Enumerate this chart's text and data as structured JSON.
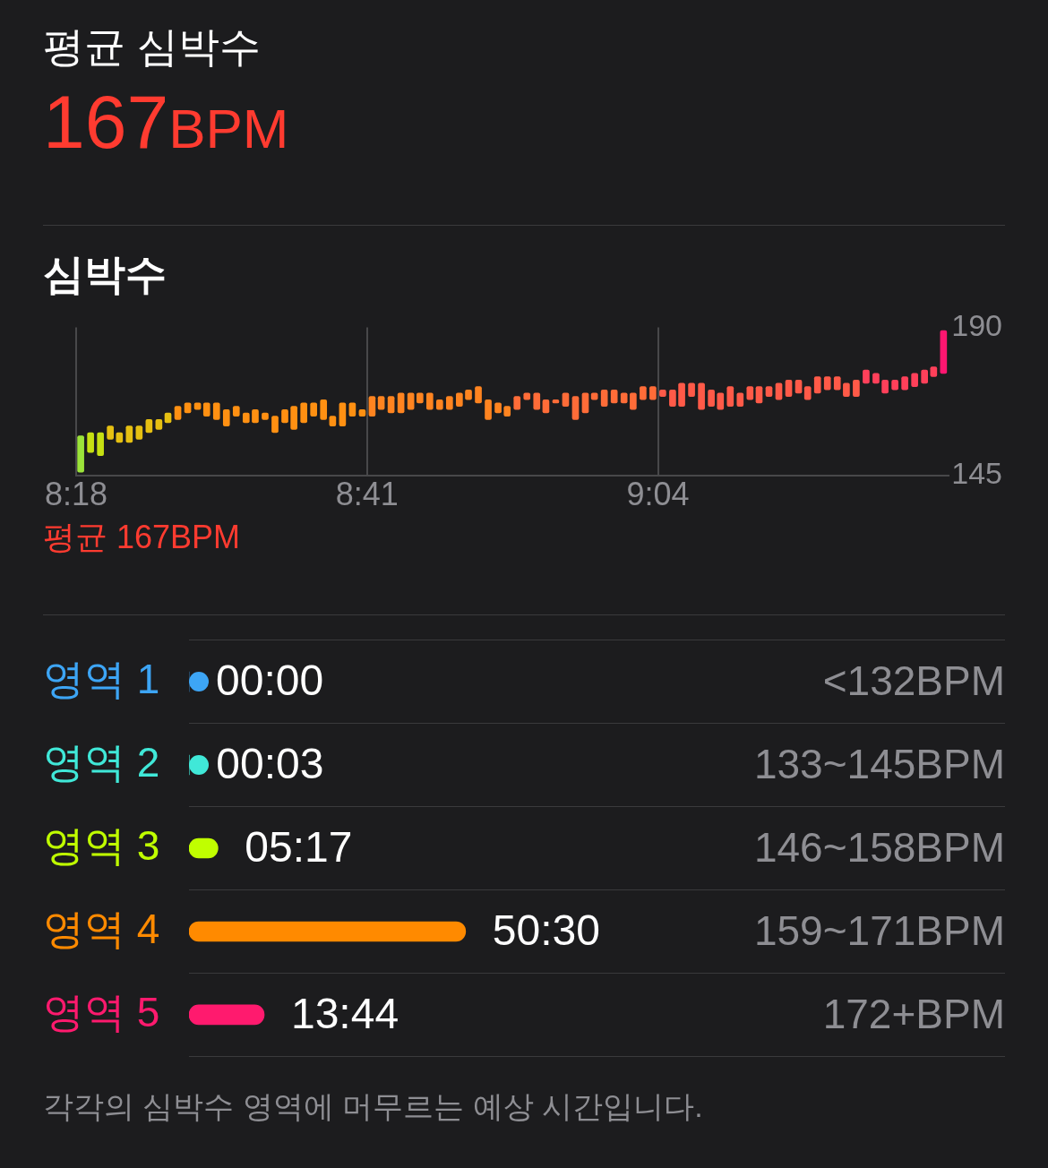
{
  "chart_data": [
    {
      "type": "other",
      "title": "평균 심박수",
      "subtitle": "167BPM"
    },
    {
      "type": "bar",
      "title": "심박수",
      "x": [
        8.306,
        8.319,
        8.332,
        8.345,
        8.357,
        8.37,
        8.383,
        8.396,
        8.409,
        8.421,
        8.434,
        8.447,
        8.46,
        8.472,
        8.485,
        8.498,
        8.511,
        8.524,
        8.536,
        8.549,
        8.562,
        8.575,
        8.587,
        8.6,
        8.613,
        8.626,
        8.638,
        8.651,
        8.664,
        8.677,
        8.69,
        8.702,
        8.715,
        8.728,
        8.741,
        8.753,
        8.766,
        8.779,
        8.792,
        8.805,
        8.817,
        8.83,
        8.843,
        8.856,
        8.868,
        8.881,
        8.894,
        8.907,
        8.919,
        8.932,
        8.945,
        8.958,
        8.971,
        8.983,
        8.996,
        9.009,
        9.022,
        9.034,
        9.047,
        9.06,
        9.073,
        9.086,
        9.098,
        9.111,
        9.124,
        9.137,
        9.149,
        9.162,
        9.175,
        9.188,
        9.2,
        9.213,
        9.226,
        9.239,
        9.252,
        9.264,
        9.277,
        9.29,
        9.303,
        9.315,
        9.328,
        9.341,
        9.354,
        9.366,
        9.379,
        9.392,
        9.405,
        9.418,
        9.43,
        9.443
      ],
      "base": [
        146,
        152,
        151,
        156,
        155,
        155,
        156,
        158,
        159,
        161,
        162,
        164,
        165,
        163,
        162,
        160,
        163,
        161,
        161,
        162,
        158,
        161,
        159,
        161,
        163,
        162,
        160,
        160,
        163,
        163,
        163,
        165,
        164,
        164,
        165,
        167,
        165,
        165,
        165,
        166,
        168,
        167,
        162,
        164,
        163,
        165,
        168,
        165,
        164,
        167,
        166,
        162,
        164,
        168,
        166,
        167,
        167,
        165,
        168,
        168,
        169,
        166,
        166,
        169,
        165,
        166,
        165,
        166,
        166,
        168,
        167,
        169,
        168,
        169,
        170,
        168,
        170,
        171,
        171,
        169,
        169,
        173,
        173,
        170,
        171,
        171,
        172,
        173,
        175,
        176
      ],
      "values": [
        11,
        6,
        7,
        4,
        3,
        5,
        4,
        4,
        3,
        3,
        4,
        3,
        2,
        4,
        5,
        5,
        3,
        3,
        4,
        2,
        5,
        4,
        7,
        6,
        4,
        6,
        3,
        7,
        4,
        2,
        6,
        4,
        5,
        6,
        5,
        3,
        5,
        3,
        4,
        4,
        3,
        5,
        6,
        3,
        3,
        4,
        2,
        5,
        4,
        1,
        4,
        7,
        6,
        2,
        5,
        4,
        3,
        5,
        4,
        4,
        2,
        5,
        7,
        4,
        8,
        5,
        5,
        6,
        4,
        4,
        5,
        3,
        5,
        5,
        4,
        4,
        5,
        4,
        4,
        4,
        5,
        4,
        3,
        4,
        3,
        4,
        4,
        4,
        3,
        13
      ],
      "colors": [
        "#9be33a",
        "#c6e012",
        "#c6e012",
        "#e6c012",
        "#e6c012",
        "#e6c012",
        "#e6c012",
        "#e6c012",
        "#e6c012",
        "#e6c012",
        "#ff9012",
        "#ff9012",
        "#ff9012",
        "#ff9012",
        "#ff9012",
        "#ff9012",
        "#ff9012",
        "#ff9012",
        "#ff9012",
        "#ff9012",
        "#ff9012",
        "#ff9012",
        "#ff9012",
        "#ff9012",
        "#ff9012",
        "#ff9012",
        "#ff9012",
        "#ff9012",
        "#ff9012",
        "#ff9012",
        "#ff8420",
        "#ff8420",
        "#ff8420",
        "#ff8420",
        "#ff8420",
        "#ff8420",
        "#ff8420",
        "#ff8420",
        "#ff8420",
        "#ff8420",
        "#ff8420",
        "#ff8420",
        "#ff8420",
        "#ff8420",
        "#ff8420",
        "#ff6c38",
        "#ff6c38",
        "#ff6c38",
        "#ff6c38",
        "#ff6c38",
        "#ff6c38",
        "#ff6c38",
        "#ff6c38",
        "#ff6c38",
        "#ff6c38",
        "#ff6c38",
        "#ff6c38",
        "#ff6c38",
        "#ff6c38",
        "#ff6c38",
        "#ff5a48",
        "#ff5a48",
        "#ff5a48",
        "#ff5a48",
        "#ff5a48",
        "#ff5a48",
        "#ff5a48",
        "#ff5a48",
        "#ff5a48",
        "#ff5a48",
        "#ff5a48",
        "#ff5a48",
        "#ff5a48",
        "#ff5a48",
        "#ff5a48",
        "#ff5a48",
        "#ff5a48",
        "#ff5a48",
        "#ff5a48",
        "#ff5a48",
        "#ff5a48",
        "#ff405a",
        "#ff405a",
        "#ff405a",
        "#ff405a",
        "#ff405a",
        "#ff405a",
        "#ff405a",
        "#ff405a",
        "#ff1670"
      ],
      "xlim": [
        8.3,
        9.45
      ],
      "xticks": [
        {
          "value": 8.3,
          "label": "8:18"
        },
        {
          "value": 8.6833,
          "label": "8:41"
        },
        {
          "value": 9.0667,
          "label": "9:04"
        }
      ],
      "ylim": [
        145,
        190
      ],
      "yticks": [
        145,
        190
      ],
      "grid": "x",
      "annotations": [
        "평균 167BPM"
      ]
    },
    {
      "type": "bar",
      "orientation": "horizontal",
      "tick_labels": "y",
      "grid": "y",
      "categories": [
        "영역 1",
        "영역 2",
        "영역 3",
        "영역 4",
        "영역 5"
      ],
      "values": [
        0,
        0.05,
        5.2833,
        50.5,
        13.7333
      ],
      "colors": [
        "#3da5f5",
        "#40e8d8",
        "#c0ff00",
        "#ff8a00",
        "#ff1a6e"
      ],
      "value_labels": [
        "00:00",
        "00:03",
        "05:17",
        "50:30",
        "13:44"
      ],
      "annotations": [
        "<132BPM",
        "133~145BPM",
        "146~158BPM",
        "159~171BPM",
        "172+BPM",
        "각각의 심박수 영역에 머무르는 예상 시간입니다."
      ]
    }
  ]
}
